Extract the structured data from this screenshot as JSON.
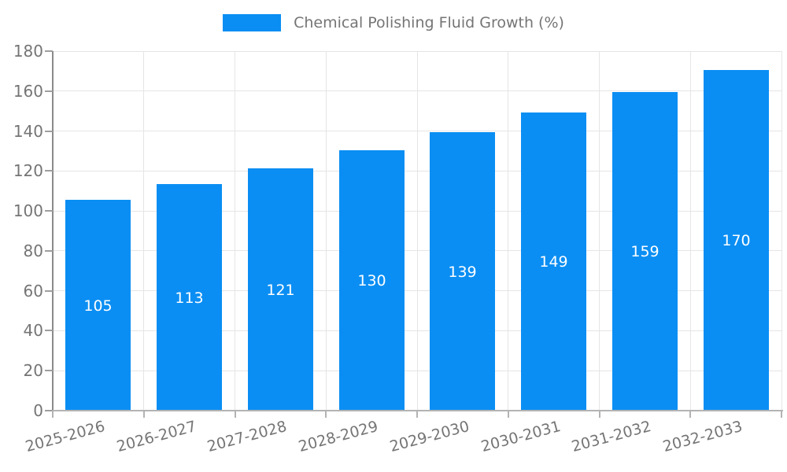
{
  "chart_data": {
    "type": "bar",
    "title": "Chemical Polishing Fluid Growth (%)",
    "categories": [
      "2025-2026",
      "2026-2027",
      "2027-2028",
      "2028-2029",
      "2029-2030",
      "2030-2031",
      "2031-2032",
      "2032-2033"
    ],
    "values": [
      105,
      113,
      121,
      130,
      139,
      149,
      159,
      170
    ],
    "xlabel": "",
    "ylabel": "",
    "ylim": [
      0,
      180
    ],
    "ytick_step": 20,
    "grid": "both",
    "legend_position": "top-center",
    "x_label_rotation_deg": -15,
    "value_labels": "inside-center",
    "colors": {
      "bar": "#0A8EF3",
      "axis_text": "#757575",
      "value_label_text": "#ffffff",
      "grid_line": "#e5e5e5",
      "y_axis_line": "#8a8a8a",
      "x_axis_line": "#b3b3b3",
      "tick_mark": "#9e9e9e",
      "background": "#ffffff"
    }
  }
}
